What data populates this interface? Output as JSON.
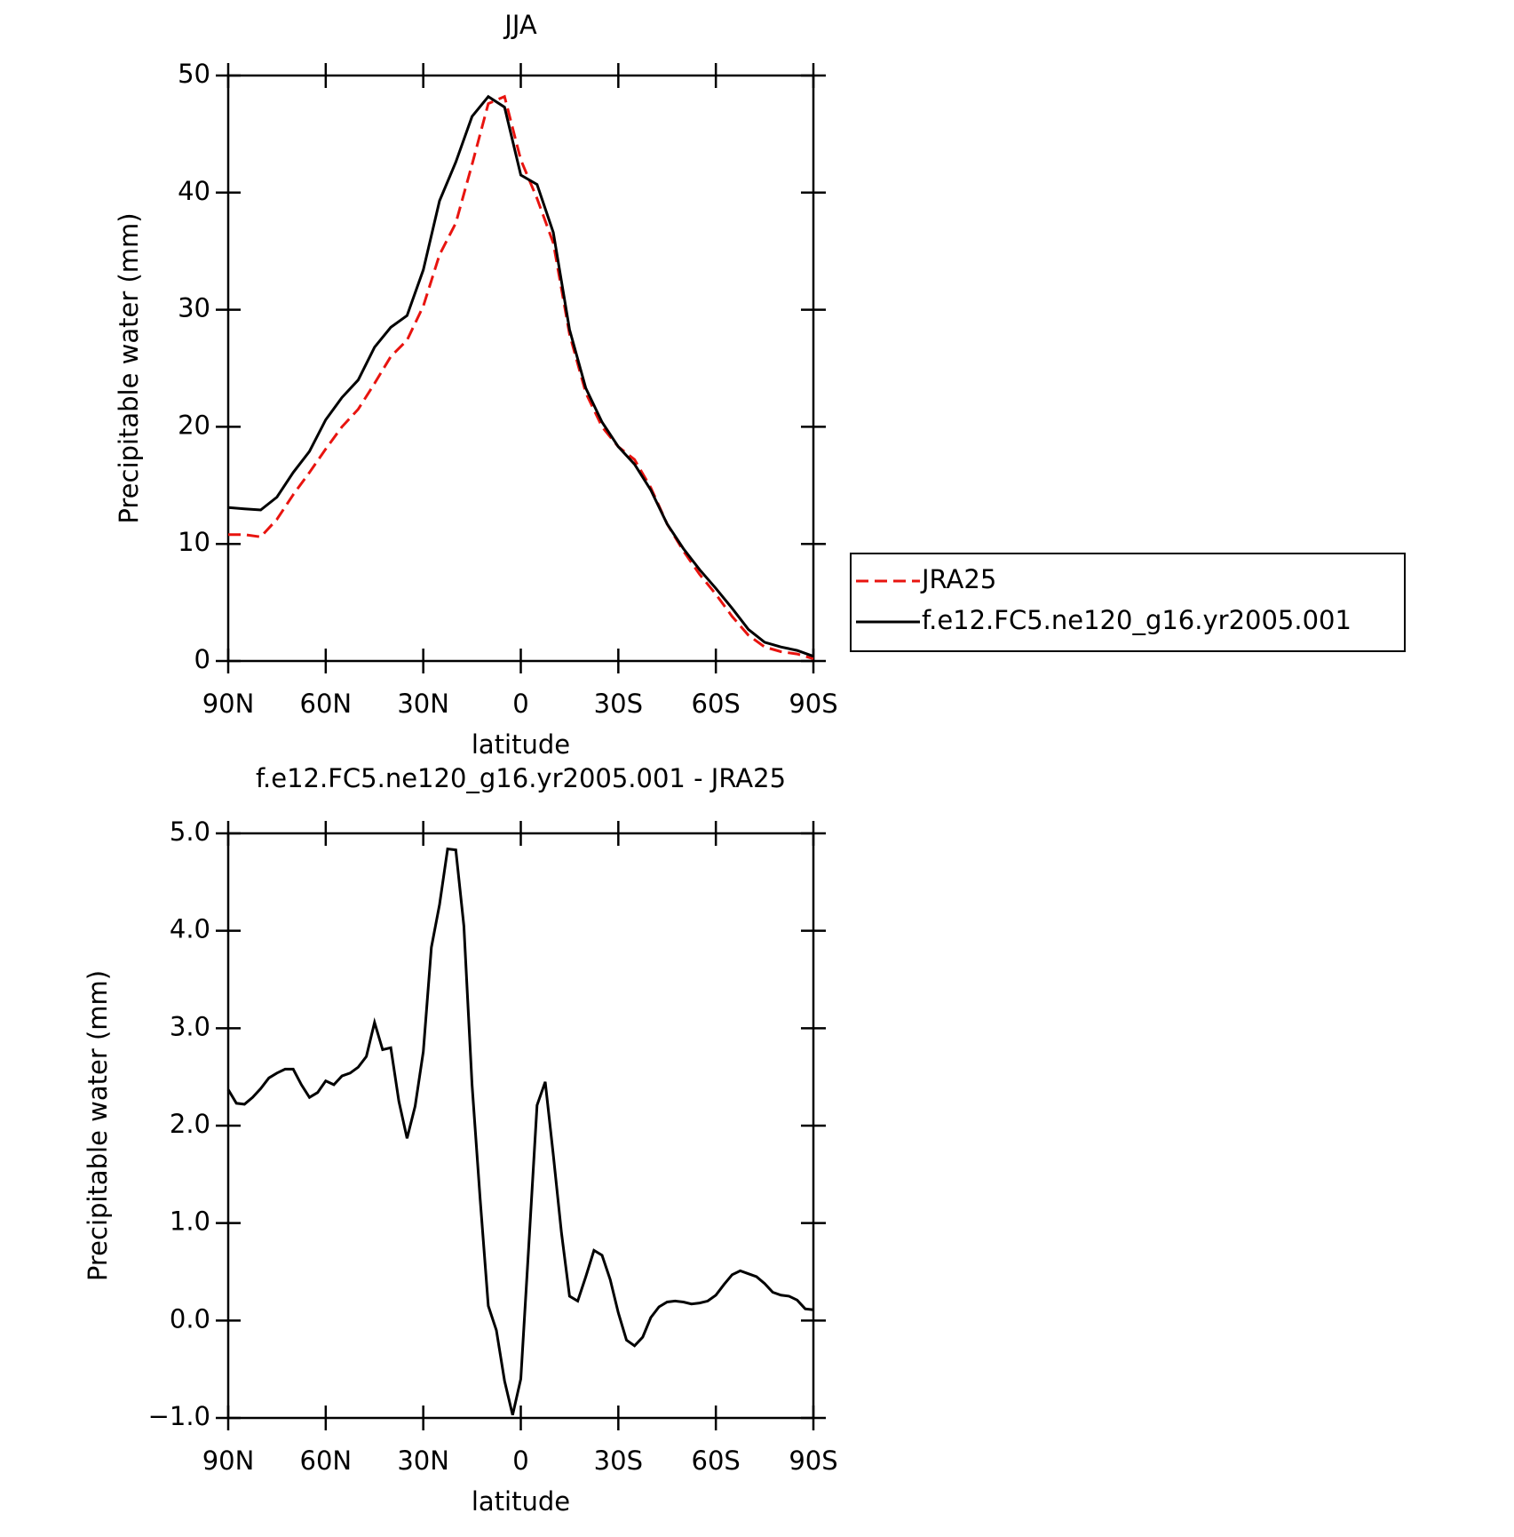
{
  "chart_data": [
    {
      "type": "line",
      "title": "JJA",
      "xlabel": "latitude",
      "ylabel": "Precipitable water (mm)",
      "x": [
        90,
        85,
        80,
        75,
        70,
        65,
        60,
        55,
        50,
        45,
        40,
        35,
        30,
        25,
        20,
        15,
        10,
        5,
        0,
        -5,
        -10,
        -15,
        -20,
        -25,
        -30,
        -35,
        -40,
        -45,
        -50,
        -55,
        -60,
        -65,
        -70,
        -75,
        -80,
        -85,
        -90
      ],
      "series": [
        {
          "name": "JRA25",
          "color": "#e8140f",
          "dash": true,
          "values": [
            10.8,
            10.8,
            10.6,
            12.1,
            14.2,
            16.1,
            18.1,
            20.0,
            21.5,
            23.7,
            26.0,
            27.4,
            30.3,
            34.7,
            37.4,
            42.4,
            47.6,
            48.2,
            42.8,
            39.5,
            35.7,
            27.9,
            22.9,
            20.0,
            18.3,
            17.2,
            14.8,
            11.7,
            9.4,
            7.4,
            5.7,
            3.8,
            2.2,
            1.2,
            0.8,
            0.6,
            0.2
          ]
        },
        {
          "name": "f.e12.FC5.ne120_g16.yr2005.001",
          "color": "#000000",
          "dash": false,
          "values": [
            13.1,
            13.0,
            12.9,
            14.0,
            16.1,
            17.9,
            20.6,
            22.5,
            24.0,
            26.8,
            28.5,
            29.5,
            33.4,
            39.3,
            42.6,
            46.5,
            48.2,
            47.3,
            41.5,
            40.7,
            36.6,
            28.3,
            23.3,
            20.4,
            18.3,
            16.8,
            14.6,
            11.7,
            9.6,
            7.8,
            6.2,
            4.5,
            2.7,
            1.6,
            1.2,
            0.9,
            0.4
          ]
        }
      ],
      "xlim": [
        90,
        -90
      ],
      "xticks": [
        {
          "value": 90,
          "label": "90N"
        },
        {
          "value": 60,
          "label": "60N"
        },
        {
          "value": 30,
          "label": "30N"
        },
        0,
        {
          "value": -30,
          "label": "30S"
        },
        {
          "value": -60,
          "label": "60S"
        },
        {
          "value": -90,
          "label": "90S"
        }
      ],
      "ylim": [
        0,
        50
      ],
      "yticks": [
        0,
        10,
        20,
        30,
        40,
        50
      ],
      "legend": "outside right"
    },
    {
      "type": "line",
      "title": "f.e12.FC5.ne120_g16.yr2005.001 - JRA25",
      "xlabel": "latitude",
      "ylabel": "Precipitable water (mm)",
      "x": [
        90,
        87.5,
        85,
        82.5,
        80,
        77.5,
        75,
        72.5,
        70,
        67.5,
        65,
        62.5,
        60,
        57.5,
        55,
        52.5,
        50,
        47.5,
        45,
        42.5,
        40,
        37.5,
        35,
        32.5,
        30,
        27.5,
        25,
        22.5,
        20,
        17.5,
        15,
        12.5,
        10,
        7.5,
        5,
        2.5,
        0,
        -2.5,
        -5,
        -7.5,
        -10,
        -12.5,
        -15,
        -17.5,
        -20,
        -22.5,
        -25,
        -27.5,
        -30,
        -32.5,
        -35,
        -37.5,
        -40,
        -42.5,
        -45,
        -47.5,
        -50,
        -52.5,
        -55,
        -57.5,
        -60,
        -62.5,
        -65,
        -67.5,
        -70,
        -72.5,
        -75,
        -77.5,
        -80,
        -82.5,
        -85,
        -87.5,
        -90
      ],
      "series": [
        {
          "name": "f.e12.FC5.ne120_g16.yr2005.001 - JRA25",
          "color": "#000000",
          "dash": false,
          "values": [
            2.37,
            2.23,
            2.22,
            2.29,
            2.38,
            2.49,
            2.54,
            2.58,
            2.58,
            2.42,
            2.29,
            2.34,
            2.46,
            2.42,
            2.51,
            2.54,
            2.6,
            2.71,
            3.06,
            2.78,
            2.8,
            2.25,
            1.87,
            2.2,
            2.76,
            3.83,
            4.27,
            4.84,
            4.83,
            4.05,
            2.42,
            1.25,
            0.15,
            -0.1,
            -0.62,
            -0.97,
            -0.6,
            0.8,
            2.21,
            2.45,
            1.7,
            0.9,
            0.25,
            0.2,
            0.45,
            0.72,
            0.67,
            0.42,
            0.08,
            -0.2,
            -0.26,
            -0.17,
            0.03,
            0.14,
            0.19,
            0.2,
            0.19,
            0.17,
            0.18,
            0.2,
            0.26,
            0.37,
            0.47,
            0.51,
            0.48,
            0.45,
            0.38,
            0.29,
            0.26,
            0.25,
            0.21,
            0.12,
            0.11
          ]
        }
      ],
      "xlim": [
        90,
        -90
      ],
      "xticks": [
        {
          "value": 90,
          "label": "90N"
        },
        {
          "value": 60,
          "label": "60N"
        },
        {
          "value": 30,
          "label": "30N"
        },
        0,
        {
          "value": -30,
          "label": "30S"
        },
        {
          "value": -60,
          "label": "60S"
        },
        {
          "value": -90,
          "label": "90S"
        }
      ],
      "ylim": [
        -1,
        5
      ],
      "yticks": [
        {
          "value": -1,
          "label": "−1.0"
        },
        {
          "value": 0,
          "label": "0.0"
        },
        {
          "value": 1,
          "label": "1.0"
        },
        {
          "value": 2,
          "label": "2.0"
        },
        {
          "value": 3,
          "label": "3.0"
        },
        {
          "value": 4,
          "label": "4.0"
        },
        {
          "value": 5,
          "label": "5.0"
        }
      ]
    }
  ]
}
